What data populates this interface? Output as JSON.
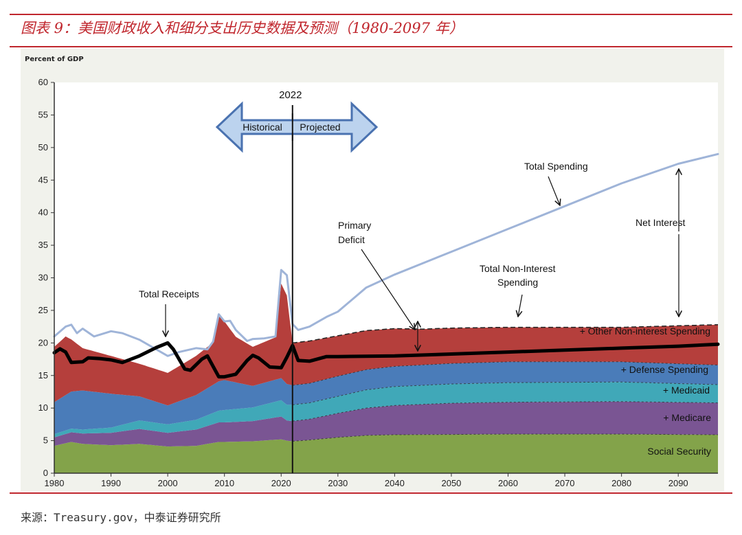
{
  "figure": {
    "title": "图表 9：美国财政收入和细分支出历史数据及预测（1980-2097 年）",
    "source": "来源：Treasury.gov，中泰证券研究所"
  },
  "chart_data": {
    "type": "area",
    "ylabel": "Percent of GDP",
    "xlim": [
      1980,
      2097
    ],
    "ylim": [
      0,
      60
    ],
    "x_ticks": [
      1980,
      1990,
      2000,
      2010,
      2020,
      2030,
      2040,
      2050,
      2060,
      2070,
      2080,
      2090
    ],
    "y_ticks": [
      0,
      5,
      10,
      15,
      20,
      25,
      30,
      35,
      40,
      45,
      50,
      55,
      60
    ],
    "grid": false,
    "divider": {
      "year": 2022,
      "label": "2022",
      "left_label": "Historical",
      "right_label": "Projected"
    },
    "colors": {
      "social_security": "#83a34a",
      "medicare": "#7a5593",
      "medicaid": "#40a8b8",
      "defense": "#4a7cb9",
      "other_non_interest": "#b53f3c",
      "total_spending": "#9fb4d8",
      "total_receipts": "#000000",
      "arrow_fill": "#bcd3ee",
      "arrow_stroke": "#4a72b0"
    },
    "stacked_series": [
      {
        "name": "Social Security",
        "key": "social_security",
        "points": [
          [
            1980,
            4.2
          ],
          [
            1983,
            4.8
          ],
          [
            1985,
            4.5
          ],
          [
            1990,
            4.3
          ],
          [
            1995,
            4.5
          ],
          [
            2000,
            4.1
          ],
          [
            2005,
            4.2
          ],
          [
            2009,
            4.8
          ],
          [
            2010,
            4.8
          ],
          [
            2015,
            4.9
          ],
          [
            2020,
            5.2
          ],
          [
            2021,
            5.0
          ],
          [
            2022,
            4.9
          ],
          [
            2025,
            5.1
          ],
          [
            2030,
            5.5
          ],
          [
            2035,
            5.8
          ],
          [
            2040,
            5.9
          ],
          [
            2060,
            6.0
          ],
          [
            2080,
            6.0
          ],
          [
            2097,
            5.9
          ]
        ]
      },
      {
        "name": "+ Medicare",
        "key": "medicare",
        "points": [
          [
            1980,
            1.3
          ],
          [
            1985,
            1.6
          ],
          [
            1990,
            1.9
          ],
          [
            1995,
            2.3
          ],
          [
            2000,
            2.1
          ],
          [
            2005,
            2.5
          ],
          [
            2009,
            3.0
          ],
          [
            2010,
            3.0
          ],
          [
            2015,
            3.1
          ],
          [
            2020,
            3.5
          ],
          [
            2021,
            3.1
          ],
          [
            2022,
            3.1
          ],
          [
            2025,
            3.2
          ],
          [
            2030,
            3.7
          ],
          [
            2035,
            4.2
          ],
          [
            2040,
            4.5
          ],
          [
            2050,
            4.8
          ],
          [
            2060,
            4.9
          ],
          [
            2080,
            5.0
          ],
          [
            2097,
            4.9
          ]
        ]
      },
      {
        "name": "+ Medicaid",
        "key": "medicaid",
        "points": [
          [
            1980,
            0.5
          ],
          [
            1985,
            0.6
          ],
          [
            1990,
            0.8
          ],
          [
            1995,
            1.3
          ],
          [
            2000,
            1.3
          ],
          [
            2005,
            1.5
          ],
          [
            2009,
            1.8
          ],
          [
            2010,
            1.9
          ],
          [
            2015,
            2.1
          ],
          [
            2020,
            2.5
          ],
          [
            2021,
            2.4
          ],
          [
            2022,
            2.5
          ],
          [
            2025,
            2.5
          ],
          [
            2030,
            2.6
          ],
          [
            2035,
            2.8
          ],
          [
            2040,
            2.9
          ],
          [
            2060,
            3.0
          ],
          [
            2080,
            3.0
          ],
          [
            2097,
            2.8
          ]
        ]
      },
      {
        "name": "+ Defense Spending",
        "key": "defense",
        "points": [
          [
            1980,
            4.9
          ],
          [
            1983,
            5.7
          ],
          [
            1985,
            6.0
          ],
          [
            1990,
            5.2
          ],
          [
            1995,
            3.7
          ],
          [
            2000,
            2.9
          ],
          [
            2005,
            3.8
          ],
          [
            2009,
            4.5
          ],
          [
            2010,
            4.6
          ],
          [
            2015,
            3.3
          ],
          [
            2020,
            3.4
          ],
          [
            2021,
            3.2
          ],
          [
            2022,
            3.0
          ],
          [
            2025,
            3.0
          ],
          [
            2030,
            3.1
          ],
          [
            2035,
            3.1
          ],
          [
            2040,
            3.1
          ],
          [
            2060,
            3.2
          ],
          [
            2080,
            3.1
          ],
          [
            2097,
            3.0
          ]
        ]
      },
      {
        "name": "+ Other Non-interest Spending",
        "key": "other_non_interest",
        "points": [
          [
            1980,
            8.5
          ],
          [
            1982,
            9.0
          ],
          [
            1983,
            8.0
          ],
          [
            1985,
            6.5
          ],
          [
            1990,
            5.8
          ],
          [
            1995,
            5.0
          ],
          [
            2000,
            5.0
          ],
          [
            2005,
            6.0
          ],
          [
            2008,
            6.5
          ],
          [
            2009,
            10.0
          ],
          [
            2010,
            9.0
          ],
          [
            2012,
            7.0
          ],
          [
            2015,
            6.0
          ],
          [
            2019,
            6.5
          ],
          [
            2020,
            14.5
          ],
          [
            2021,
            13.6
          ],
          [
            2022,
            6.5
          ],
          [
            2025,
            6.5
          ],
          [
            2030,
            6.2
          ],
          [
            2035,
            6.0
          ],
          [
            2040,
            5.8
          ],
          [
            2045,
            5.5
          ],
          [
            2060,
            5.3
          ],
          [
            2080,
            5.3
          ],
          [
            2097,
            6.2
          ]
        ]
      }
    ],
    "lines": [
      {
        "name": "Total Spending",
        "key": "total_spending",
        "points": [
          [
            1980,
            21.0
          ],
          [
            1982,
            22.5
          ],
          [
            1983,
            22.8
          ],
          [
            1984,
            21.5
          ],
          [
            1985,
            22.2
          ],
          [
            1987,
            21.0
          ],
          [
            1990,
            21.8
          ],
          [
            1992,
            21.5
          ],
          [
            1995,
            20.5
          ],
          [
            1998,
            19.0
          ],
          [
            2000,
            18.0
          ],
          [
            2002,
            18.6
          ],
          [
            2005,
            19.2
          ],
          [
            2007,
            19.0
          ],
          [
            2008,
            20.2
          ],
          [
            2009,
            24.4
          ],
          [
            2010,
            23.3
          ],
          [
            2011,
            23.4
          ],
          [
            2012,
            22.0
          ],
          [
            2014,
            20.3
          ],
          [
            2015,
            20.6
          ],
          [
            2017,
            20.7
          ],
          [
            2019,
            21.0
          ],
          [
            2020,
            31.2
          ],
          [
            2021,
            30.4
          ],
          [
            2022,
            22.9
          ],
          [
            2023,
            22.0
          ],
          [
            2025,
            22.5
          ],
          [
            2028,
            24.0
          ],
          [
            2030,
            24.8
          ],
          [
            2035,
            28.5
          ],
          [
            2040,
            30.5
          ],
          [
            2050,
            34.0
          ],
          [
            2060,
            37.5
          ],
          [
            2070,
            41.0
          ],
          [
            2080,
            44.5
          ],
          [
            2090,
            47.5
          ],
          [
            2097,
            49.0
          ]
        ]
      },
      {
        "name": "Total Receipts",
        "key": "total_receipts",
        "points": [
          [
            1980,
            18.5
          ],
          [
            1981,
            19.1
          ],
          [
            1982,
            18.6
          ],
          [
            1983,
            17.0
          ],
          [
            1985,
            17.1
          ],
          [
            1986,
            17.7
          ],
          [
            1988,
            17.6
          ],
          [
            1990,
            17.4
          ],
          [
            1992,
            17.0
          ],
          [
            1995,
            18.0
          ],
          [
            1998,
            19.3
          ],
          [
            2000,
            20.0
          ],
          [
            2001,
            19.0
          ],
          [
            2003,
            16.0
          ],
          [
            2004,
            15.8
          ],
          [
            2006,
            17.5
          ],
          [
            2007,
            18.0
          ],
          [
            2009,
            14.8
          ],
          [
            2010,
            14.8
          ],
          [
            2012,
            15.2
          ],
          [
            2014,
            17.3
          ],
          [
            2015,
            18.1
          ],
          [
            2016,
            17.7
          ],
          [
            2018,
            16.3
          ],
          [
            2020,
            16.2
          ],
          [
            2021,
            17.8
          ],
          [
            2022,
            19.6
          ],
          [
            2023,
            17.3
          ],
          [
            2025,
            17.2
          ],
          [
            2028,
            17.9
          ],
          [
            2030,
            17.9
          ],
          [
            2040,
            18.0
          ],
          [
            2050,
            18.3
          ],
          [
            2060,
            18.6
          ],
          [
            2070,
            18.9
          ],
          [
            2080,
            19.2
          ],
          [
            2090,
            19.5
          ],
          [
            2097,
            19.8
          ]
        ]
      }
    ],
    "annotations": {
      "total_spending": "Total Spending",
      "total_receipts": "Total Receipts",
      "primary_deficit_1": "Primary",
      "primary_deficit_2": "Deficit",
      "non_interest_1": "Total Non-Interest",
      "non_interest_2": "Spending",
      "net_interest": "Net Interest",
      "other_non_interest": "+ Other Non-interest Spending",
      "defense": "+ Defense Spending",
      "medicaid": "+ Medicaid",
      "medicare": "+ Medicare",
      "social_security": "Social Security"
    }
  }
}
